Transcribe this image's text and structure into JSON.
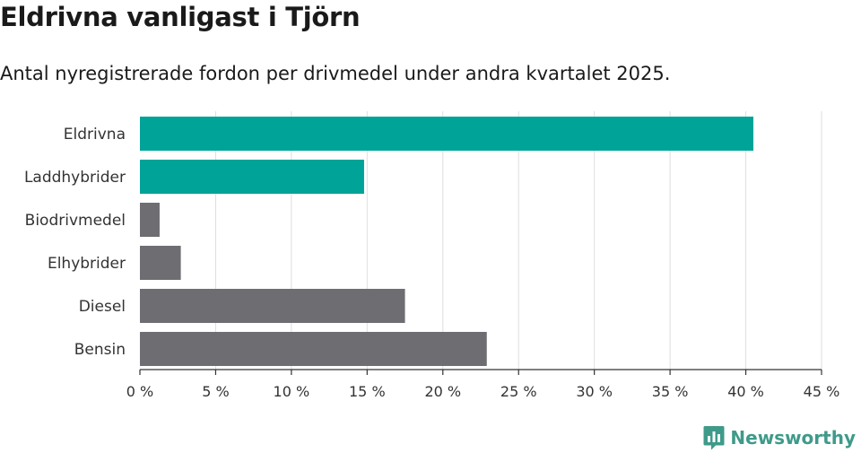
{
  "header": {
    "title": "Eldrivna vanligast i Tjörn",
    "subtitle": "Antal nyregistrerade fordon per drivmedel under andra kvartalet 2025."
  },
  "brand": {
    "name": "Newsworthy",
    "icon": "newsworthy-chart-logo-icon",
    "color": "#3f9a8a"
  },
  "colors": {
    "highlight": "#00a398",
    "default": "#6e6d72",
    "grid": "#dedede",
    "axis": "#333333"
  },
  "chart_data": {
    "type": "bar",
    "orientation": "horizontal",
    "categories": [
      "Eldrivna",
      "Laddhybrider",
      "Biodrivmedel",
      "Elhybrider",
      "Diesel",
      "Bensin"
    ],
    "values": [
      40.5,
      14.8,
      1.3,
      2.7,
      17.5,
      22.9
    ],
    "highlighted": [
      "Eldrivna",
      "Laddhybrider"
    ],
    "xlim": [
      0,
      45
    ],
    "ticks": [
      0,
      5,
      10,
      15,
      20,
      25,
      30,
      35,
      40,
      45
    ],
    "tick_labels": [
      "0 %",
      "5 %",
      "10 %",
      "15 %",
      "20 %",
      "25 %",
      "30 %",
      "35 %",
      "40 %",
      "45 %"
    ],
    "grid": true
  }
}
